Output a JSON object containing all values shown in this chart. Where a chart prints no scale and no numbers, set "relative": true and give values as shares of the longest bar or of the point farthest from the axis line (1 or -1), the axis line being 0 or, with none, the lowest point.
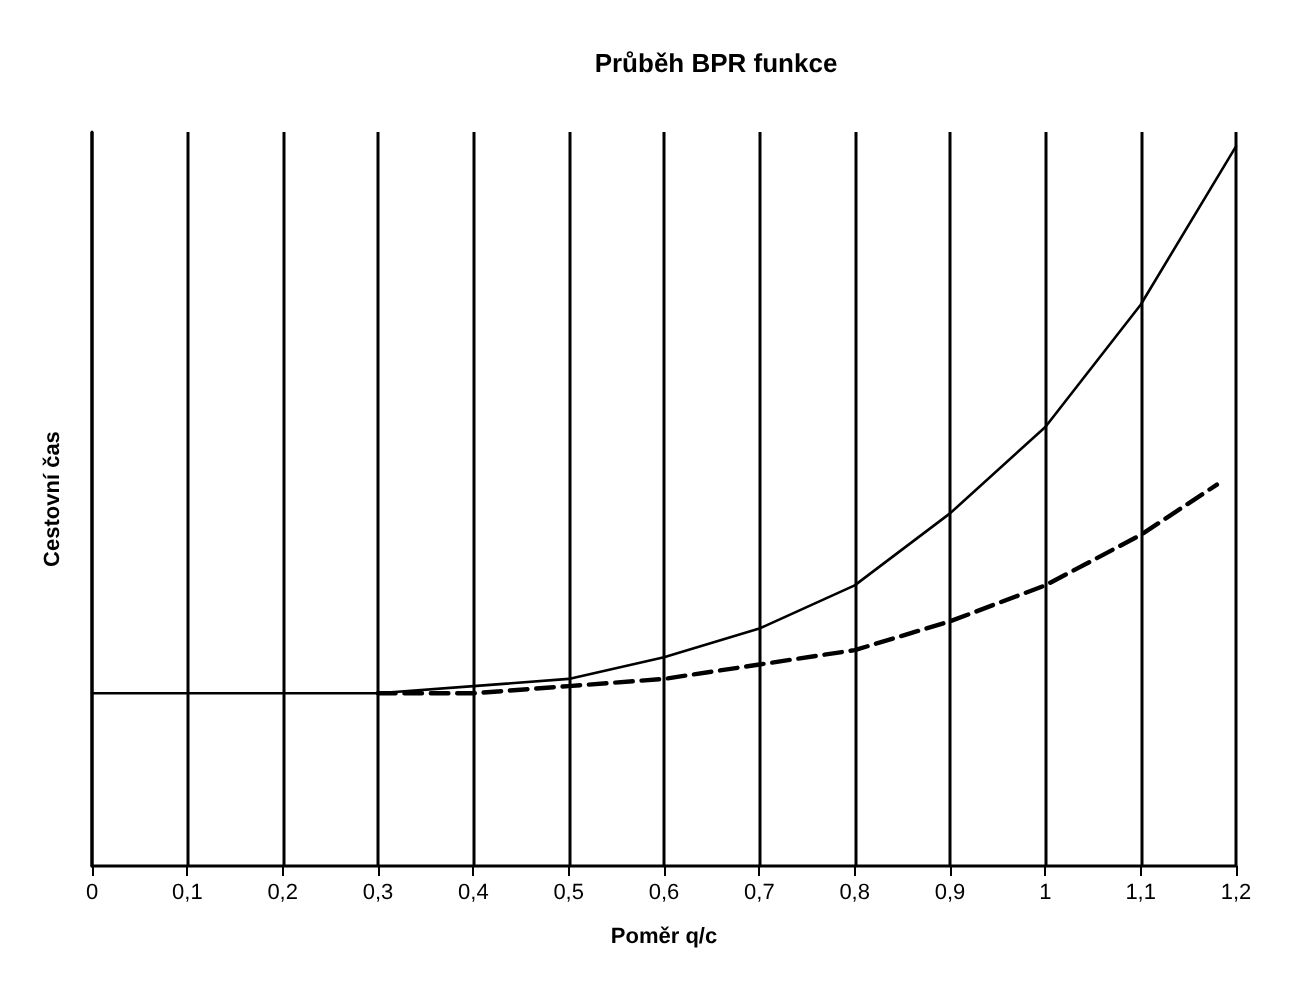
{
  "chart_data": {
    "type": "line",
    "title": "Průběh BPR funkce",
    "xlabel": "Poměr q/c",
    "ylabel": "Cestovní čas",
    "relative": true,
    "grid": "x",
    "marker": "none",
    "xlim": [
      0,
      1.2
    ],
    "xticks": [
      0,
      {
        "value": 0.1,
        "label": "0,1"
      },
      {
        "value": 0.2,
        "label": "0,2"
      },
      {
        "value": 0.3,
        "label": "0,3"
      },
      {
        "value": 0.4,
        "label": "0,4"
      },
      {
        "value": 0.5,
        "label": "0,5"
      },
      {
        "value": 0.6,
        "label": "0,6"
      },
      {
        "value": 0.7,
        "label": "0,7"
      },
      {
        "value": 0.8,
        "label": "0,8"
      },
      {
        "value": 0.9,
        "label": "0,9"
      },
      1,
      {
        "value": 1.1,
        "label": "1,1"
      },
      {
        "value": 1.2,
        "label": "1,2"
      }
    ],
    "series": [
      {
        "color": "#000000",
        "line_style": "solid",
        "x": [
          0,
          0.1,
          0.2,
          0.3,
          0.4,
          0.5,
          0.6,
          0.7,
          0.8,
          0.9,
          1,
          1.1,
          1.2
        ],
        "values": [
          0.24,
          0.24,
          0.24,
          0.24,
          0.25,
          0.26,
          0.29,
          0.33,
          0.39,
          0.49,
          0.61,
          0.78,
          1
        ]
      },
      {
        "color": "#000000",
        "line_style": "dashed",
        "x": [
          0.3,
          0.4,
          0.5,
          0.6,
          0.7,
          0.8,
          0.9,
          1,
          1.1,
          1.18
        ],
        "values": [
          0.24,
          0.24,
          0.25,
          0.26,
          0.28,
          0.3,
          0.34,
          0.39,
          0.46,
          0.53
        ]
      }
    ]
  }
}
